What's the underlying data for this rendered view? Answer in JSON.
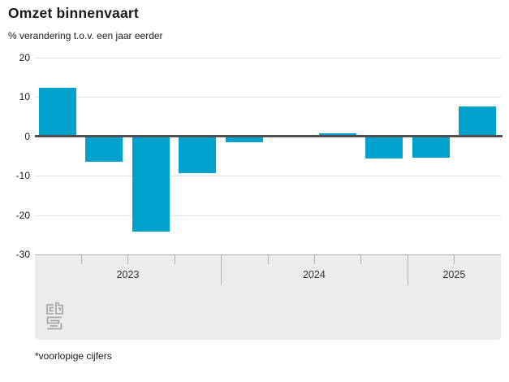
{
  "header": {
    "title": "Omzet binnenvaart",
    "subtitle": "% verandering t.o.v. een jaar eerder"
  },
  "footnote": "*voorlopige cijfers",
  "logo": "cbs-logo",
  "colors": {
    "bar": "#00a1cd",
    "zero_line": "#4d4d4d",
    "gridline": "#e3e3e3",
    "band_background": "#ececec",
    "band_border": "#b0b0b0",
    "text": "#1a1a1a"
  },
  "chart_data": {
    "type": "bar",
    "title": "Omzet binnenvaart",
    "ylabel": "% verandering t.o.v. een jaar eerder",
    "categories": [
      "2023 Q1",
      "2023 Q2",
      "2023 Q3",
      "2023 Q4",
      "2024 Q1",
      "2024 Q2",
      "2024 Q3",
      "2024 Q4",
      "2025 Q1",
      "2025 Q2"
    ],
    "values": [
      12.4,
      -6.4,
      -24.3,
      -9.4,
      -1.4,
      0.0,
      0.8,
      -5.6,
      -5.5,
      7.6
    ],
    "ylim": [
      -30,
      20
    ],
    "yticks": [
      20,
      10,
      0,
      -10,
      -20,
      -30
    ],
    "year_groups": [
      {
        "label": "2023",
        "quarters": 4
      },
      {
        "label": "2024",
        "quarters": 4
      },
      {
        "label": "2025",
        "quarters": 2
      }
    ],
    "grid": true,
    "legend": false,
    "bar_color": "#00a1cd"
  }
}
